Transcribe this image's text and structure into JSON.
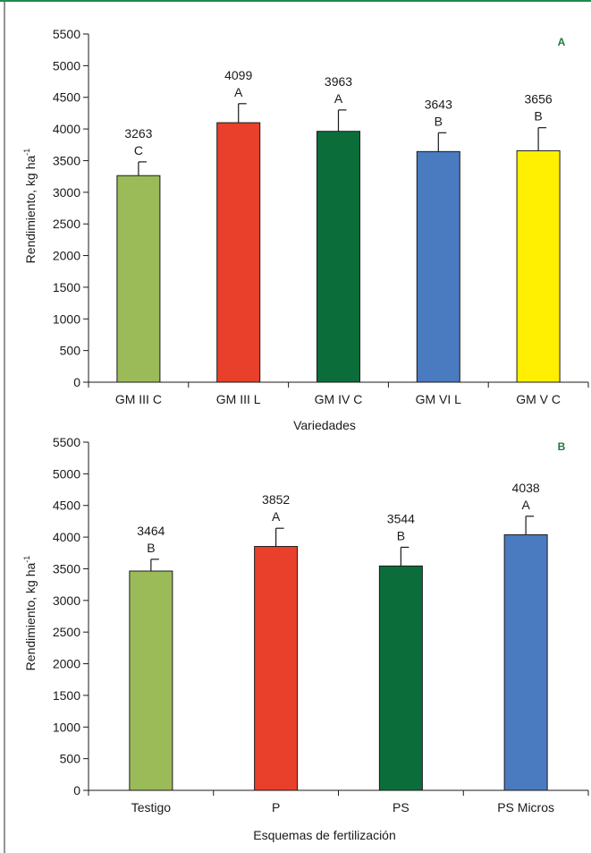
{
  "colors": {
    "frame": "#1f8a4c",
    "axis": "#1a1a1a",
    "panel_label": "#1e7a3c",
    "bar_outline": "#1a1a1a"
  },
  "chart_data": [
    {
      "type": "bar",
      "panel_label": "A",
      "categories": [
        "GM III C",
        "GM III L",
        "GM IV C",
        "GM VI L",
        "GM V C"
      ],
      "values": [
        3263,
        4099,
        3963,
        3643,
        3656
      ],
      "error_upper": [
        3480,
        4400,
        4300,
        3940,
        4020
      ],
      "data_labels": [
        "3263",
        "4099",
        "3963",
        "3643",
        "3656"
      ],
      "letters": [
        "C",
        "A",
        "A",
        "B",
        "B"
      ],
      "colors": [
        "#9bbb59",
        "#e8402a",
        "#0b6e3a",
        "#4a7ac0",
        "#ffef00"
      ],
      "xlabel": "Variedades",
      "ylabel": "Rendimiento, kg ha",
      "ylabel_sup": "-1",
      "ylim": [
        0,
        5500
      ],
      "yticks": [
        0,
        500,
        1000,
        1500,
        2000,
        2500,
        3000,
        3500,
        4000,
        4500,
        5000,
        5500
      ],
      "grid": false
    },
    {
      "type": "bar",
      "panel_label": "B",
      "categories": [
        "Testigo",
        "P",
        "PS",
        "PS Micros"
      ],
      "values": [
        3464,
        3852,
        3544,
        4038
      ],
      "error_upper": [
        3650,
        4140,
        3840,
        4330
      ],
      "data_labels": [
        "3464",
        "3852",
        "3544",
        "4038"
      ],
      "letters": [
        "B",
        "A",
        "B",
        "A"
      ],
      "colors": [
        "#9bbb59",
        "#e8402a",
        "#0b6e3a",
        "#4a7ac0"
      ],
      "xlabel": "Esquemas de fertilización",
      "ylabel": "Rendimiento, kg ha",
      "ylabel_sup": "-1",
      "ylim": [
        0,
        5500
      ],
      "yticks": [
        0,
        500,
        1000,
        1500,
        2000,
        2500,
        3000,
        3500,
        4000,
        4500,
        5000,
        5500
      ],
      "grid": false
    }
  ]
}
